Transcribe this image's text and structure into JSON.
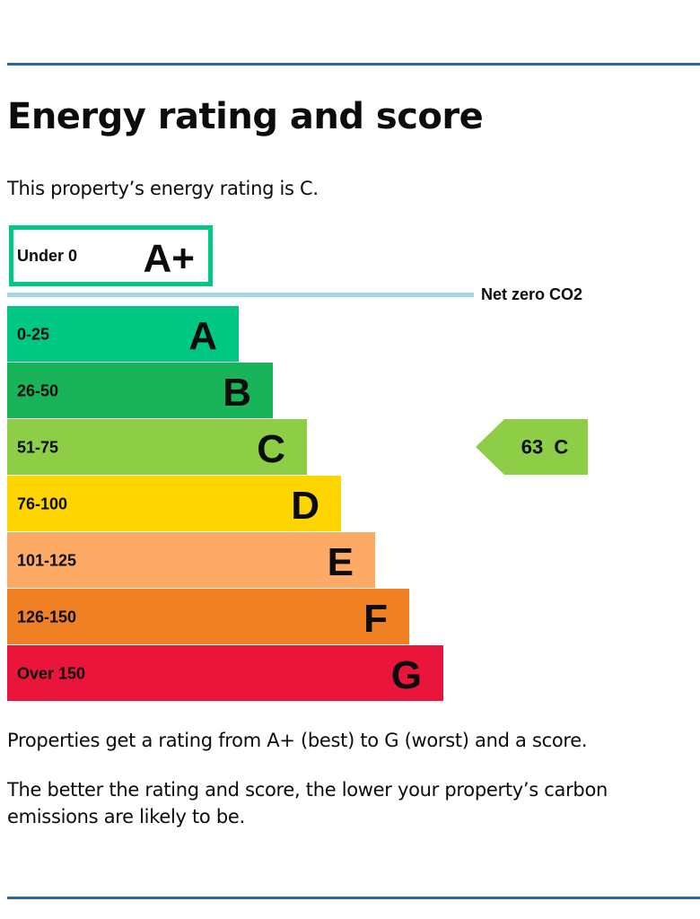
{
  "heading": "Energy rating and score",
  "intro": "This property’s energy rating is C.",
  "chart_data": {
    "type": "bar",
    "bands": [
      {
        "range": "Under 0",
        "letter": "A+",
        "color": "#00c781",
        "outline": true
      },
      {
        "range": "0-25",
        "letter": "A",
        "color": "#00c781"
      },
      {
        "range": "26-50",
        "letter": "B",
        "color": "#19b459"
      },
      {
        "range": "51-75",
        "letter": "C",
        "color": "#8dce46"
      },
      {
        "range": "76-100",
        "letter": "D",
        "color": "#ffd500"
      },
      {
        "range": "101-125",
        "letter": "E",
        "color": "#fcaa65"
      },
      {
        "range": "126-150",
        "letter": "F",
        "color": "#ef8023"
      },
      {
        "range": "Over 150",
        "letter": "G",
        "color": "#e9153b"
      }
    ],
    "net_zero_label": "Net zero CO2",
    "net_zero_color": "#a6d5e8",
    "current": {
      "score": 63,
      "letter": "C",
      "score_text": "63  C",
      "color": "#8dce46"
    }
  },
  "explanation": "Properties get a rating from A+ (best) to G (worst) and a score.",
  "note": "The better the rating and score, the lower your property’s carbon emissions are likely to be.",
  "colors": {
    "rule": "#2b68a8",
    "text": "#0b0c0c"
  }
}
